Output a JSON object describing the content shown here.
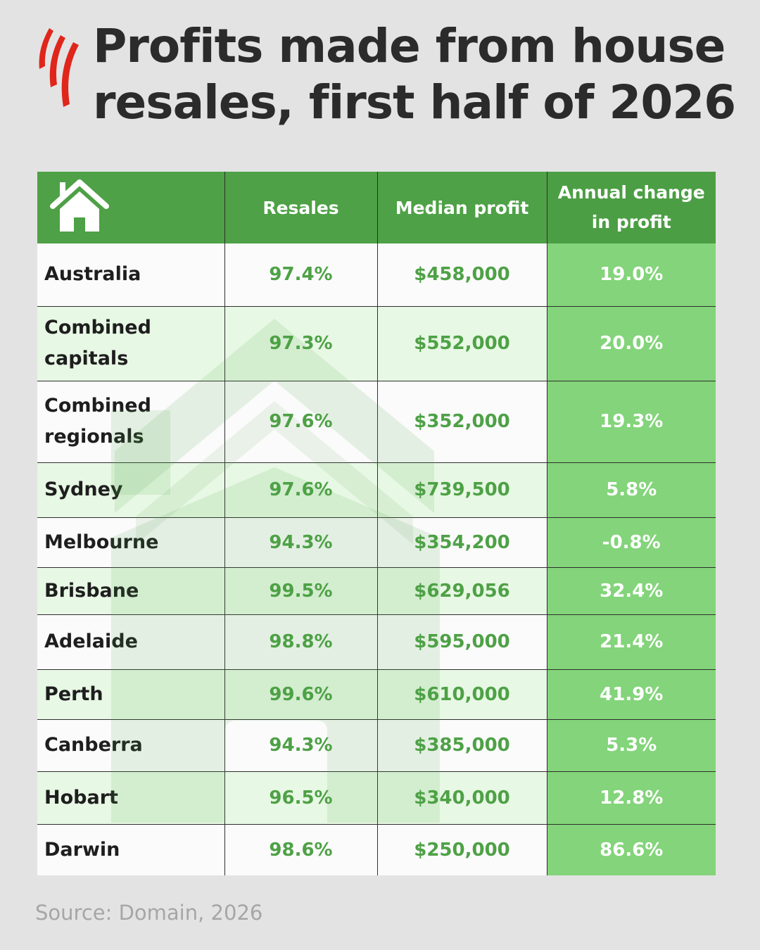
{
  "title_line1": "Profits made from house",
  "title_line2": "resales, first half of 2026",
  "source": "Source: Domain, 2026",
  "colors": {
    "header_green": "#4ea146",
    "change_column_green": "#83d47a",
    "value_text_green": "#4ea146",
    "alt_row_tint": "#e8fce4",
    "logo_red": "#e0261b"
  },
  "icons": {
    "logo": "sbs-logo-icon",
    "header": "house-icon",
    "watermark": "house-watermark-icon"
  },
  "chart_data": {
    "type": "table",
    "columns": [
      "",
      "Resales",
      "Median profit",
      "Annual change in profit"
    ],
    "header_change_line1": "Annual change",
    "header_change_line2": "in profit",
    "rows": [
      {
        "region": "Australia",
        "resales": "97.4%",
        "median_profit": "$458,000",
        "annual_change": "19.0%"
      },
      {
        "region": "Combined capitals",
        "resales": "97.3%",
        "median_profit": "$552,000",
        "annual_change": "20.0%"
      },
      {
        "region": "Combined regionals",
        "resales": "97.6%",
        "median_profit": "$352,000",
        "annual_change": "19.3%"
      },
      {
        "region": "Sydney",
        "resales": "97.6%",
        "median_profit": "$739,500",
        "annual_change": "5.8%"
      },
      {
        "region": "Melbourne",
        "resales": "94.3%",
        "median_profit": "$354,200",
        "annual_change": "-0.8%"
      },
      {
        "region": "Brisbane",
        "resales": "99.5%",
        "median_profit": "$629,056",
        "annual_change": "32.4%"
      },
      {
        "region": "Adelaide",
        "resales": "98.8%",
        "median_profit": "$595,000",
        "annual_change": "21.4%"
      },
      {
        "region": "Perth",
        "resales": "99.6%",
        "median_profit": "$610,000",
        "annual_change": "41.9%"
      },
      {
        "region": "Canberra",
        "resales": "94.3%",
        "median_profit": "$385,000",
        "annual_change": "5.3%"
      },
      {
        "region": "Hobart",
        "resales": "96.5%",
        "median_profit": "$340,000",
        "annual_change": "12.8%"
      },
      {
        "region": "Darwin",
        "resales": "98.6%",
        "median_profit": "$250,000",
        "annual_change": "86.6%"
      }
    ]
  }
}
